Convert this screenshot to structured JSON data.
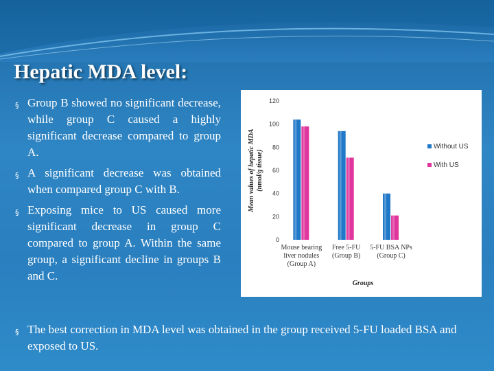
{
  "slide": {
    "title": "Hepatic MDA level:",
    "bullets": [
      "Group B showed no significant decrease, while group C caused a highly significant decrease compared to group A.",
      "A significant decrease was obtained when compared group C with B.",
      "Exposing mice to US caused more significant decrease in group C compared to group A. Within the same group, a significant decline in groups B and C."
    ],
    "bottom_bullet": "The best correction in MDA level was obtained in the group received 5-FU loaded BSA and exposed to US.",
    "bullet_symbol": "§"
  },
  "chart_data": {
    "type": "bar",
    "categories": [
      [
        "Mouse bearing",
        "liver nodules",
        "(Group A)"
      ],
      [
        "Free 5-FU",
        "(Group B)"
      ],
      [
        "5-FU BSA NPs",
        "(Group C)"
      ]
    ],
    "series": [
      {
        "name": "Without US",
        "values": [
          104,
          94,
          40
        ],
        "color": "#1f78c8"
      },
      {
        "name": "With US",
        "values": [
          98,
          71,
          21
        ],
        "color": "#e0359c"
      }
    ],
    "ylabel": [
      "Mean values of hepatic MDA",
      "(nmol/g tissue)"
    ],
    "xlabel": "Groups",
    "ylim": [
      0,
      120
    ],
    "yticks": [
      0,
      20,
      40,
      60,
      80,
      100,
      120
    ],
    "grid": false,
    "legend": "right"
  }
}
